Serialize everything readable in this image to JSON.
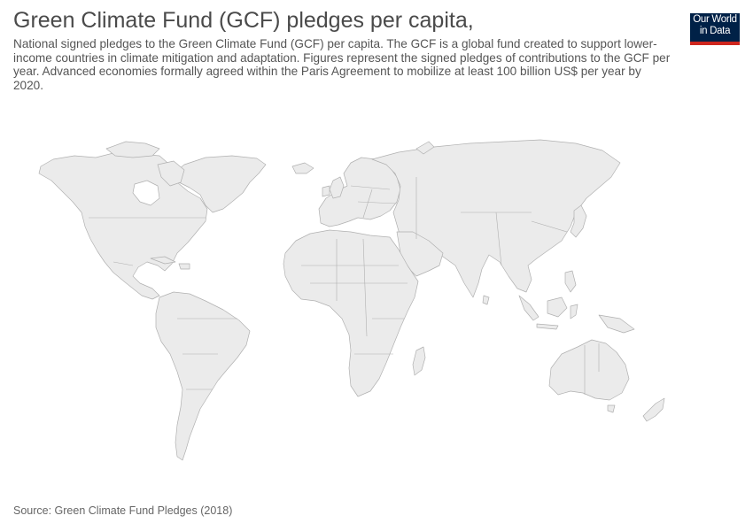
{
  "header": {
    "title": "Green Climate Fund (GCF) pledges per capita,",
    "subtitle": "National signed pledges to the Green Climate Fund (GCF) per capita. The GCF is a global fund created to support lower-income countries in climate mitigation and adaptation. Figures represent the signed pledges of contributions to the GCF per year. Advanced economies formally agreed within the Paris Agreement to mobilize at least 100 billion US$ per year by 2020."
  },
  "logo": {
    "line1": "Our World",
    "line2": "in Data"
  },
  "footer": {
    "source": "Source: Green Climate Fund Pledges (2018)"
  },
  "colors": {
    "land": "#ebebeb",
    "border": "#b0b0b0",
    "logo_bg": "#002147",
    "logo_accent": "#ce261e"
  }
}
